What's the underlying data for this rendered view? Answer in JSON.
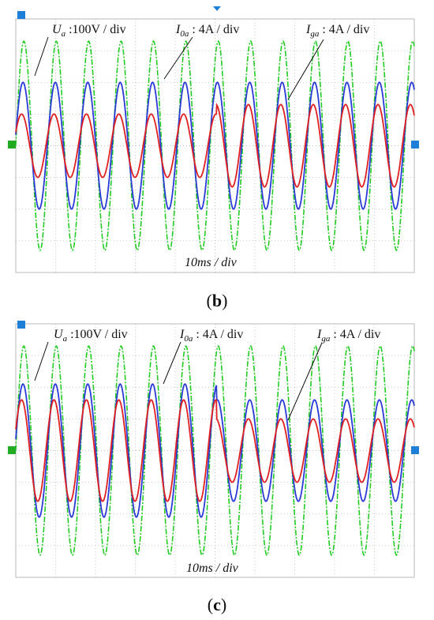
{
  "panels": [
    {
      "caption": {
        "open": "(",
        "letter": "b",
        "close": ")"
      },
      "labels": {
        "ua": {
          "sym": "U",
          "sub": "a",
          "text": " :100V / div"
        },
        "i0a": {
          "sym": "I",
          "sub": "0a",
          "text": " : 4A / div"
        },
        "iga": {
          "sym": "I",
          "sub": "ga",
          "text": " : 4A / div"
        },
        "time": "10ms / div"
      }
    },
    {
      "caption": {
        "open": "(",
        "letter": "c",
        "close": ")"
      },
      "labels": {
        "ua": {
          "sym": "U",
          "sub": "a",
          "text": " :100V / div"
        },
        "i0a": {
          "sym": "I",
          "sub": "0a",
          "text": " : 4A / div"
        },
        "iga": {
          "sym": "I",
          "sub": "ga",
          "text": " : 4A / div"
        },
        "time": "10ms / div"
      }
    }
  ],
  "colors": {
    "grid": "#b9b9b9",
    "ua": "#22cc22",
    "i0a": "#2a3ad6",
    "iga": "#e02020",
    "marker_blue": "#1e7fd8",
    "marker_green": "#22aa22"
  },
  "chart_data": [
    {
      "type": "line",
      "grid": true,
      "x_divisions": 10,
      "y_divisions": 8,
      "x_units": "div (10ms / div)",
      "y_units": "div",
      "cycles": 12.3,
      "series": [
        {
          "name": "Ua",
          "amplitude_div": [
            3.3
          ],
          "phase_deg": 90
        },
        {
          "name": "I0a",
          "amplitude_div": [
            2.0
          ],
          "phase_deg": 80
        },
        {
          "name": "Iga",
          "amplitude_div": [
            1.0,
            1.3
          ],
          "switch_cycle": 6.2,
          "phase_deg": 65
        }
      ]
    },
    {
      "type": "line",
      "grid": true,
      "x_divisions": 10,
      "y_divisions": 8,
      "x_units": "div (10ms / div)",
      "y_units": "div",
      "cycles": 12.3,
      "series": [
        {
          "name": "Ua",
          "amplitude_div": [
            3.3
          ],
          "phase_deg": 90
        },
        {
          "name": "I0a",
          "amplitude_div": [
            2.1,
            1.6
          ],
          "switch_cycle": 6.2,
          "phase_deg": 80
        },
        {
          "name": "Iga",
          "amplitude_div": [
            1.6,
            1.0
          ],
          "switch_cycle": 6.2,
          "phase_deg": 65
        }
      ]
    }
  ]
}
